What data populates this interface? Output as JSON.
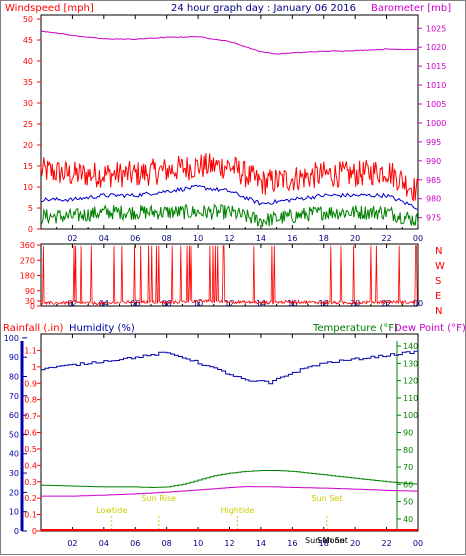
{
  "header": {
    "windspeed_label": "Windspeed [mph]",
    "title": "24 hour graph day : January 06 2016",
    "barometer_label": "Barometer [mb]"
  },
  "colors": {
    "wind_speed": "#ff0000",
    "wind_avg": "#0000cc",
    "wind_lull": "#008000",
    "barometer": "#cc00cc",
    "direction": "#ff0000",
    "humidity": "#0000aa",
    "temperature": "#008000",
    "dew_point": "#cc00cc",
    "rainfall": "#ff0000",
    "annotations": "#cccc00"
  },
  "mid_labels": {
    "compass": [
      "N",
      "W",
      "S",
      "E",
      "N"
    ]
  },
  "lower_header": {
    "rainfall_label": "Rainfall (.in)",
    "humidity_label": "Humidity (%)",
    "temperature_label": "Temperature (°F)",
    "dew_point_label": "Dew Point (°F)"
  },
  "annotations": [
    {
      "label": "Lowtide",
      "hour": 4.5
    },
    {
      "label": "Sun Rise",
      "hour": 7.5
    },
    {
      "label": "Hightide",
      "hour": 12.5
    },
    {
      "label": "Sun Set",
      "hour": 18.2
    }
  ],
  "sun_moon_labels": [
    "Sun Moon",
    "Sun Set"
  ],
  "chart_data": [
    {
      "type": "line",
      "name": "wind-barometer",
      "x_ticks": [
        "02",
        "04",
        "06",
        "08",
        "10",
        "12",
        "14",
        "16",
        "18",
        "20",
        "22",
        "00"
      ],
      "y_left_ticks": [
        0,
        5,
        10,
        15,
        20,
        25,
        30,
        35,
        40,
        45,
        50
      ],
      "y_right_ticks": [
        975,
        980,
        985,
        990,
        995,
        1000,
        1005,
        1010,
        1015,
        1020,
        1025
      ],
      "ylim_left": [
        0,
        50
      ],
      "ylim_right": [
        972,
        1028.5
      ],
      "series": [
        {
          "name": "Windspeed",
          "hours": [
            0,
            2,
            4,
            6,
            8,
            10,
            12,
            14,
            16,
            18,
            20,
            22,
            24
          ],
          "values": [
            14,
            13,
            13,
            13,
            14,
            15,
            15,
            11,
            12,
            13,
            13,
            14,
            9
          ]
        },
        {
          "name": "Windspeed avg",
          "hours": [
            0,
            2,
            4,
            6,
            8,
            10,
            12,
            14,
            16,
            18,
            20,
            22,
            24
          ],
          "values": [
            7,
            7,
            8,
            8,
            9,
            10,
            9,
            6,
            7,
            8,
            8,
            8,
            5
          ]
        },
        {
          "name": "Wind lull",
          "hours": [
            0,
            2,
            4,
            6,
            8,
            10,
            12,
            14,
            16,
            18,
            20,
            22,
            24
          ],
          "values": [
            3,
            3,
            4,
            4,
            4,
            4,
            4,
            2,
            3,
            4,
            4,
            4,
            2
          ]
        },
        {
          "name": "Barometer",
          "hours": [
            0,
            1,
            2,
            4,
            6,
            8,
            10,
            12,
            14,
            15,
            16,
            18,
            20,
            22,
            24
          ],
          "values": [
            1024.2,
            1023.8,
            1023.1,
            1022.2,
            1022.1,
            1022.6,
            1022.8,
            1021.5,
            1018.8,
            1018.2,
            1018.5,
            1018.9,
            1019.1,
            1019.5,
            1019.4
          ]
        }
      ]
    },
    {
      "type": "scatter",
      "name": "wind-direction",
      "x_ticks": [
        "02",
        "04",
        "06",
        "08",
        "10",
        "12",
        "14",
        "16",
        "18",
        "20",
        "22",
        "00"
      ],
      "y_ticks": [
        0,
        30,
        90,
        180,
        270,
        360
      ],
      "ylim": [
        0,
        360
      ],
      "series": [
        {
          "name": "Direction",
          "hours": [
            0,
            2,
            4,
            6,
            8,
            10,
            12,
            14,
            16,
            18,
            20,
            22,
            24
          ],
          "values": [
            15,
            20,
            15,
            25,
            20,
            30,
            25,
            20,
            25,
            20,
            20,
            25,
            20
          ]
        }
      ]
    },
    {
      "type": "line",
      "name": "humidity-temperature-rain",
      "x_ticks": [
        "02",
        "04",
        "06",
        "08",
        "10",
        "12",
        "14",
        "16",
        "18",
        "20",
        "22",
        "00"
      ],
      "y_left_ticks": [
        0,
        10,
        20,
        30,
        40,
        50,
        60,
        70,
        80,
        90,
        100
      ],
      "y_left_rain_ticks": [
        0,
        0.1,
        0.2,
        0.3,
        0.4,
        0.5,
        0.6,
        0.7,
        0.8,
        0.9,
        1,
        1.1
      ],
      "y_right_ticks": [
        40,
        50,
        60,
        70,
        80,
        90,
        100,
        110,
        120,
        130,
        140
      ],
      "ylim_humidity": [
        0,
        102
      ],
      "ylim_rain": [
        0,
        1.2
      ],
      "ylim_temp": [
        33,
        147
      ],
      "series": [
        {
          "name": "Humidity",
          "hours": [
            0,
            1,
            2,
            3,
            4,
            5,
            6,
            7,
            7.5,
            8,
            9,
            10,
            11,
            12,
            13,
            13.5,
            14,
            14.5,
            15,
            16,
            17,
            18,
            19,
            20,
            21,
            22,
            23,
            24
          ],
          "values": [
            84,
            85,
            86,
            87,
            88,
            89,
            90,
            91,
            92,
            92,
            90,
            87,
            84,
            81,
            78,
            77,
            78,
            76,
            79,
            82,
            85,
            87,
            88,
            89,
            90,
            91,
            92,
            93
          ]
        },
        {
          "name": "Temperature",
          "hours": [
            0,
            2,
            4,
            6,
            7,
            8,
            9,
            10,
            11,
            12,
            13,
            14,
            15,
            16,
            18,
            20,
            22,
            24
          ],
          "values": [
            59.5,
            59,
            58.5,
            58.5,
            58.2,
            58.5,
            60,
            62.5,
            65,
            66.5,
            67.5,
            68,
            68,
            67.5,
            65.5,
            63.5,
            61.5,
            60
          ]
        },
        {
          "name": "Dew Point",
          "hours": [
            0,
            2,
            4,
            6,
            8,
            10,
            12,
            13,
            15,
            16,
            18,
            20,
            22,
            24
          ],
          "values": [
            53.2,
            53.2,
            53.8,
            54.5,
            55.5,
            56.8,
            58.2,
            58.7,
            58.5,
            58.2,
            57.8,
            57.2,
            56.5,
            56
          ]
        },
        {
          "name": "Rainfall",
          "hours": [
            0,
            24
          ],
          "values": [
            0,
            0
          ]
        }
      ]
    }
  ]
}
